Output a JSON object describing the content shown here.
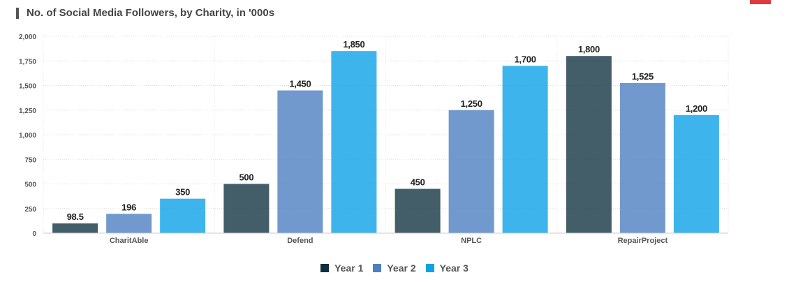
{
  "accent": "#e0393e",
  "chart_data": {
    "type": "bar",
    "title": "No. of Social Media Followers, by Charity, in '000s",
    "categories": [
      "CharitAble",
      "Defend",
      "NPLC",
      "RepairProject"
    ],
    "series": [
      {
        "name": "Year 1",
        "color": "#0e2f3f",
        "values": [
          98.5,
          500,
          450,
          1800
        ]
      },
      {
        "name": "Year 2",
        "color": "#4e7fc0",
        "values": [
          196,
          1450,
          1250,
          1525
        ]
      },
      {
        "name": "Year 3",
        "color": "#0da2e7",
        "values": [
          350,
          1850,
          1700,
          1200
        ]
      }
    ],
    "value_labels": [
      [
        "98.5",
        "500",
        "450",
        "1,800"
      ],
      [
        "196",
        "1,450",
        "1,250",
        "1,525"
      ],
      [
        "350",
        "1,850",
        "1,700",
        "1,200"
      ]
    ],
    "yticks": [
      0,
      250,
      500,
      750,
      1000,
      1250,
      1500,
      1750,
      2000
    ],
    "ytick_labels": [
      "0",
      "250",
      "500",
      "750",
      "1,000",
      "1,250",
      "1,500",
      "1,750",
      "2,000"
    ],
    "ylim": [
      0,
      2000
    ],
    "xlabel": "",
    "ylabel": "",
    "grid": true,
    "legend_position": "bottom-center"
  }
}
